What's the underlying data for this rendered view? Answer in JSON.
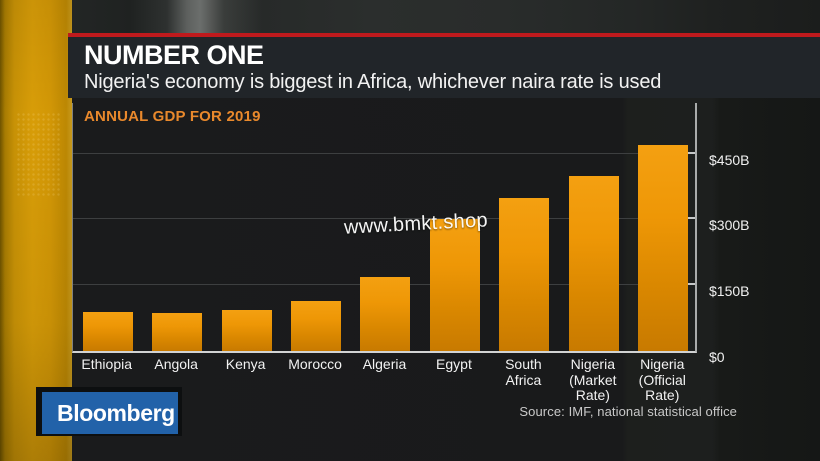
{
  "header": {
    "kicker": "NUMBER ONE",
    "subtitle": "Nigeria's economy is biggest in Africa, whichever naira rate is used"
  },
  "watermark": {
    "text": "www.bmkt.shop"
  },
  "source_line": "Source: IMF, national statistical office",
  "branding": {
    "logo": "Bloomberg"
  },
  "colors": {
    "accent_strip": "#d89d08",
    "red_rule": "#bf1a1d",
    "bar_orange": "#ee9706",
    "title_orange": "#e9892c",
    "logo_blue": "#2262a9",
    "banner_bg": "#212529"
  },
  "chart_data": {
    "type": "bar",
    "title": "ANNUAL GDP FOR 2019",
    "unit": "USD billions",
    "categories": [
      "Ethiopia",
      "Angola",
      "Kenya",
      "Morocco",
      "Algeria",
      "Egypt",
      "South Africa",
      "Nigeria (Market Rate)",
      "Nigeria (Official Rate)"
    ],
    "category_label_lines": [
      [
        "Ethiopia"
      ],
      [
        "Angola"
      ],
      [
        "Kenya"
      ],
      [
        "Morocco"
      ],
      [
        "Algeria"
      ],
      [
        "Egypt"
      ],
      [
        "South",
        "Africa"
      ],
      [
        "Nigeria",
        "(Market",
        "Rate)"
      ],
      [
        "Nigeria",
        "(Official",
        "Rate)"
      ]
    ],
    "values": [
      90,
      87,
      94,
      113,
      168,
      301,
      350,
      400,
      470
    ],
    "ylim": [
      0,
      570
    ],
    "yticks": [
      {
        "value": 0,
        "label": "$0"
      },
      {
        "value": 150,
        "label": "$150B"
      },
      {
        "value": 300,
        "label": "$300B"
      },
      {
        "value": 450,
        "label": "$450B"
      }
    ],
    "grid": true,
    "axis_side": "right",
    "legend": null
  }
}
